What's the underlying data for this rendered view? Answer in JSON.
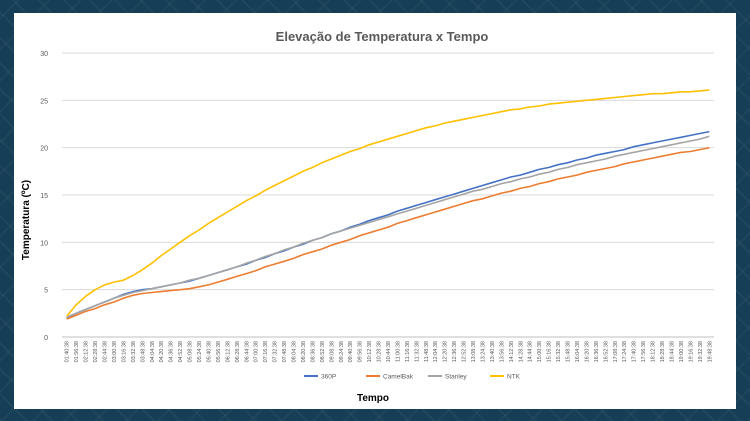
{
  "chart_data": {
    "type": "line",
    "title": "Elevação de Temperatura x Tempo",
    "xlabel": "Tempo",
    "ylabel": "Temperatura (ºC)",
    "ylim": [
      0,
      30
    ],
    "yticks": [
      "0",
      "5",
      "10",
      "15",
      "20",
      "25",
      "30"
    ],
    "grid": true,
    "legend_position": "bottom",
    "categories": [
      "01:40:38",
      "01:56:38",
      "02:12:38",
      "02:28:38",
      "02:44:38",
      "03:00:38",
      "03:16:38",
      "03:32:38",
      "03:48:38",
      "04:04:38",
      "04:20:38",
      "04:36:38",
      "04:52:38",
      "05:08:38",
      "05:24:38",
      "05:40:38",
      "05:56:38",
      "06:12:38",
      "06:28:38",
      "06:44:38",
      "07:00:38",
      "07:16:38",
      "07:32:38",
      "07:48:38",
      "08:04:38",
      "08:20:38",
      "08:36:38",
      "08:52:38",
      "09:08:38",
      "09:24:38",
      "09:40:38",
      "09:56:38",
      "10:12:38",
      "10:28:38",
      "10:44:38",
      "11:00:38",
      "11:16:38",
      "11:32:38",
      "11:48:38",
      "12:04:38",
      "12:20:38",
      "12:36:38",
      "12:52:38",
      "13:08:38",
      "13:24:38",
      "13:40:38",
      "13:56:38",
      "14:12:38",
      "14:28:38",
      "14:44:38",
      "15:00:38",
      "15:16:38",
      "15:32:38",
      "15:48:38",
      "16:04:38",
      "16:20:38",
      "16:36:38",
      "16:52:38",
      "17:08:38",
      "17:24:38",
      "17:40:38",
      "17:56:38",
      "18:12:38",
      "18:28:38",
      "18:44:38",
      "19:00:38",
      "19:16:38",
      "19:32:38",
      "19:48:38"
    ],
    "series": [
      {
        "name": "360P",
        "color": "#4472c4",
        "values": [
          2.0,
          2.5,
          2.9,
          3.3,
          3.7,
          4.1,
          4.5,
          4.8,
          5.0,
          5.1,
          5.3,
          5.5,
          5.7,
          5.9,
          6.2,
          6.5,
          6.8,
          7.1,
          7.4,
          7.7,
          8.1,
          8.4,
          8.8,
          9.1,
          9.5,
          9.8,
          10.2,
          10.5,
          10.9,
          11.2,
          11.6,
          11.9,
          12.3,
          12.6,
          12.9,
          13.3,
          13.6,
          13.9,
          14.2,
          14.5,
          14.8,
          15.1,
          15.4,
          15.7,
          16.0,
          16.3,
          16.6,
          16.9,
          17.1,
          17.4,
          17.7,
          17.9,
          18.2,
          18.4,
          18.7,
          18.9,
          19.2,
          19.4,
          19.6,
          19.8,
          20.1,
          20.3,
          20.5,
          20.7,
          20.9,
          21.1,
          21.3,
          21.5,
          21.7
        ]
      },
      {
        "name": "CamelBak",
        "color": "#ed7d31",
        "values": [
          1.9,
          2.3,
          2.7,
          3.0,
          3.4,
          3.7,
          4.1,
          4.4,
          4.6,
          4.7,
          4.8,
          4.9,
          5.0,
          5.1,
          5.3,
          5.5,
          5.8,
          6.1,
          6.4,
          6.7,
          7.0,
          7.4,
          7.7,
          8.0,
          8.3,
          8.7,
          9.0,
          9.3,
          9.7,
          10.0,
          10.3,
          10.7,
          11.0,
          11.3,
          11.6,
          12.0,
          12.3,
          12.6,
          12.9,
          13.2,
          13.5,
          13.8,
          14.1,
          14.4,
          14.6,
          14.9,
          15.2,
          15.4,
          15.7,
          15.9,
          16.2,
          16.4,
          16.7,
          16.9,
          17.1,
          17.4,
          17.6,
          17.8,
          18.0,
          18.3,
          18.5,
          18.7,
          18.9,
          19.1,
          19.3,
          19.5,
          19.6,
          19.8,
          20.0
        ]
      },
      {
        "name": "Stanley",
        "color": "#a5a5a5",
        "values": [
          2.1,
          2.5,
          2.9,
          3.3,
          3.7,
          4.1,
          4.4,
          4.7,
          4.9,
          5.1,
          5.3,
          5.5,
          5.7,
          6.0,
          6.2,
          6.5,
          6.8,
          7.1,
          7.4,
          7.8,
          8.1,
          8.5,
          8.8,
          9.2,
          9.5,
          9.9,
          10.2,
          10.5,
          10.9,
          11.2,
          11.5,
          11.8,
          12.1,
          12.4,
          12.7,
          13.0,
          13.3,
          13.6,
          13.9,
          14.2,
          14.5,
          14.8,
          15.1,
          15.4,
          15.6,
          15.9,
          16.2,
          16.4,
          16.7,
          16.9,
          17.2,
          17.4,
          17.7,
          17.9,
          18.2,
          18.4,
          18.6,
          18.8,
          19.1,
          19.3,
          19.5,
          19.7,
          19.9,
          20.1,
          20.3,
          20.5,
          20.7,
          20.9,
          21.2
        ]
      },
      {
        "name": "NTK",
        "color": "#ffc000",
        "values": [
          2.2,
          3.4,
          4.3,
          5.0,
          5.5,
          5.8,
          6.0,
          6.5,
          7.1,
          7.8,
          8.6,
          9.3,
          10.0,
          10.7,
          11.3,
          12.0,
          12.6,
          13.2,
          13.8,
          14.4,
          14.9,
          15.5,
          16.0,
          16.5,
          17.0,
          17.5,
          17.9,
          18.4,
          18.8,
          19.2,
          19.6,
          19.9,
          20.3,
          20.6,
          20.9,
          21.2,
          21.5,
          21.8,
          22.1,
          22.3,
          22.6,
          22.8,
          23.0,
          23.2,
          23.4,
          23.6,
          23.8,
          24.0,
          24.1,
          24.3,
          24.4,
          24.6,
          24.7,
          24.8,
          24.9,
          25.0,
          25.1,
          25.2,
          25.3,
          25.4,
          25.5,
          25.6,
          25.7,
          25.7,
          25.8,
          25.9,
          25.9,
          26.0,
          26.1
        ]
      }
    ]
  }
}
